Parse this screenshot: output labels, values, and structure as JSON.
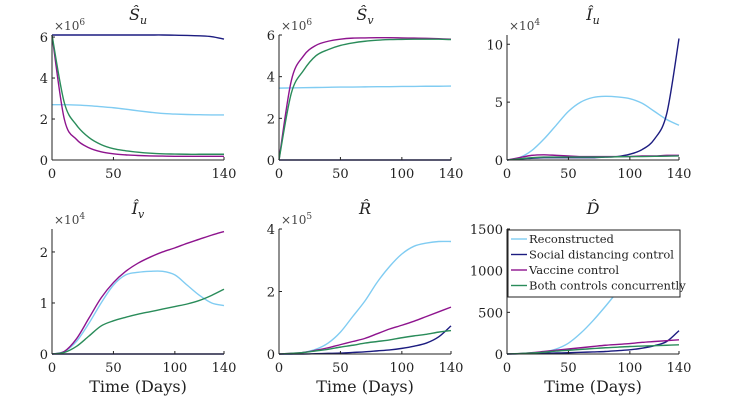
{
  "chart_data": [
    {
      "type": "line",
      "title": {
        "main": "Ŝ",
        "sub": "u"
      },
      "exponent": {
        "base": "×10",
        "power": "6"
      },
      "xlabel": "",
      "xlim": [
        0,
        140
      ],
      "ylim": [
        0,
        6.1
      ],
      "xticks": [
        0,
        50,
        140
      ],
      "yticks": [
        0,
        2,
        4,
        6
      ],
      "x": [
        0,
        10,
        20,
        30,
        40,
        50,
        60,
        70,
        80,
        90,
        100,
        110,
        120,
        130,
        140
      ],
      "series": [
        {
          "name": "Reconstructed",
          "values": [
            2.7,
            2.7,
            2.68,
            2.65,
            2.6,
            2.55,
            2.48,
            2.4,
            2.33,
            2.27,
            2.24,
            2.22,
            2.21,
            2.2,
            2.2
          ]
        },
        {
          "name": "Social distancing control",
          "values": [
            6.1,
            6.1,
            6.1,
            6.1,
            6.1,
            6.1,
            6.1,
            6.1,
            6.1,
            6.1,
            6.09,
            6.08,
            6.06,
            6.02,
            5.9
          ]
        },
        {
          "name": "Vaccine control",
          "values": [
            6.1,
            2.0,
            1.0,
            0.6,
            0.4,
            0.3,
            0.25,
            0.22,
            0.2,
            0.19,
            0.18,
            0.18,
            0.18,
            0.18,
            0.18
          ]
        },
        {
          "name": "Both controls concurrently",
          "values": [
            6.1,
            2.8,
            1.7,
            1.1,
            0.75,
            0.55,
            0.45,
            0.38,
            0.33,
            0.3,
            0.29,
            0.28,
            0.28,
            0.28,
            0.28
          ]
        }
      ]
    },
    {
      "type": "line",
      "title": {
        "main": "Ŝ",
        "sub": "v"
      },
      "exponent": {
        "base": "×10",
        "power": "6"
      },
      "xlabel": "",
      "xlim": [
        0,
        140
      ],
      "ylim": [
        0,
        6
      ],
      "xticks": [
        0,
        50,
        100,
        140
      ],
      "yticks": [
        0,
        2,
        4,
        6
      ],
      "x": [
        0,
        10,
        20,
        30,
        40,
        50,
        60,
        70,
        80,
        90,
        100,
        110,
        120,
        130,
        140
      ],
      "series": [
        {
          "name": "Reconstructed",
          "values": [
            3.45,
            3.46,
            3.47,
            3.48,
            3.49,
            3.5,
            3.5,
            3.51,
            3.52,
            3.52,
            3.53,
            3.53,
            3.54,
            3.54,
            3.55
          ]
        },
        {
          "name": "Social distancing control",
          "values": [
            0,
            0,
            0,
            0,
            0,
            0,
            0,
            0,
            0,
            0,
            0,
            0,
            0,
            0,
            0
          ]
        },
        {
          "name": "Vaccine control",
          "values": [
            0,
            3.8,
            5.0,
            5.5,
            5.7,
            5.8,
            5.85,
            5.86,
            5.87,
            5.87,
            5.86,
            5.85,
            5.84,
            5.82,
            5.8
          ]
        },
        {
          "name": "Both controls concurrently",
          "values": [
            0,
            3.2,
            4.3,
            5.0,
            5.3,
            5.5,
            5.62,
            5.7,
            5.75,
            5.78,
            5.79,
            5.8,
            5.8,
            5.8,
            5.78
          ]
        }
      ]
    },
    {
      "type": "line",
      "title": {
        "main": "Î",
        "sub": "u"
      },
      "exponent": {
        "base": "×10",
        "power": "4"
      },
      "xlabel": "",
      "xlim": [
        0,
        140
      ],
      "ylim": [
        0,
        10.8
      ],
      "xticks": [
        0,
        50,
        100,
        140
      ],
      "yticks": [
        0,
        5,
        10
      ],
      "x": [
        0,
        10,
        20,
        30,
        40,
        50,
        60,
        70,
        80,
        90,
        100,
        110,
        120,
        130,
        140
      ],
      "series": [
        {
          "name": "Reconstructed",
          "values": [
            0,
            0.2,
            0.8,
            1.8,
            3.0,
            4.2,
            5.0,
            5.4,
            5.5,
            5.45,
            5.3,
            4.9,
            4.2,
            3.5,
            3.0
          ]
        },
        {
          "name": "Social distancing control",
          "values": [
            0,
            0.1,
            0.15,
            0.2,
            0.2,
            0.2,
            0.2,
            0.2,
            0.25,
            0.3,
            0.5,
            0.9,
            1.8,
            4.0,
            10.5
          ]
        },
        {
          "name": "Vaccine control",
          "values": [
            0,
            0.2,
            0.4,
            0.45,
            0.4,
            0.35,
            0.3,
            0.3,
            0.3,
            0.3,
            0.3,
            0.35,
            0.35,
            0.4,
            0.4
          ]
        },
        {
          "name": "Both controls concurrently",
          "values": [
            0,
            0.1,
            0.2,
            0.25,
            0.25,
            0.25,
            0.25,
            0.25,
            0.25,
            0.28,
            0.3,
            0.3,
            0.32,
            0.33,
            0.35
          ]
        }
      ]
    },
    {
      "type": "line",
      "title": {
        "main": "Î",
        "sub": "v"
      },
      "exponent": {
        "base": "×10",
        "power": "4"
      },
      "xlabel": "Time (Days)",
      "xlim": [
        0,
        140
      ],
      "ylim": [
        0,
        2.45
      ],
      "xticks": [
        0,
        50,
        100,
        140
      ],
      "yticks": [
        0,
        1,
        2
      ],
      "x": [
        0,
        10,
        20,
        30,
        40,
        50,
        60,
        70,
        80,
        90,
        100,
        110,
        120,
        130,
        140
      ],
      "series": [
        {
          "name": "Reconstructed",
          "values": [
            0,
            0.05,
            0.25,
            0.6,
            1.0,
            1.35,
            1.55,
            1.6,
            1.62,
            1.62,
            1.55,
            1.35,
            1.15,
            1.0,
            0.95
          ]
        },
        {
          "name": "Social distancing control",
          "values": [
            0,
            0,
            0,
            0,
            0,
            0,
            0,
            0,
            0,
            0,
            0,
            0,
            0,
            0,
            0
          ]
        },
        {
          "name": "Vaccine control",
          "values": [
            0,
            0.05,
            0.3,
            0.7,
            1.1,
            1.4,
            1.62,
            1.78,
            1.9,
            2.0,
            2.08,
            2.17,
            2.25,
            2.33,
            2.4
          ]
        },
        {
          "name": "Both controls concurrently",
          "values": [
            0,
            0.03,
            0.15,
            0.35,
            0.55,
            0.65,
            0.72,
            0.78,
            0.83,
            0.88,
            0.93,
            0.98,
            1.05,
            1.15,
            1.27
          ]
        }
      ]
    },
    {
      "type": "line",
      "title": {
        "main": "R̂",
        "sub": ""
      },
      "exponent": {
        "base": "×10",
        "power": "5"
      },
      "xlabel": "Time (Days)",
      "xlim": [
        0,
        140
      ],
      "ylim": [
        0,
        4
      ],
      "xticks": [
        0,
        50,
        100,
        140
      ],
      "yticks": [
        0,
        2,
        4
      ],
      "x": [
        0,
        10,
        20,
        30,
        40,
        50,
        60,
        70,
        80,
        90,
        100,
        110,
        120,
        130,
        140
      ],
      "series": [
        {
          "name": "Reconstructed",
          "values": [
            0,
            0,
            0.05,
            0.15,
            0.35,
            0.7,
            1.2,
            1.7,
            2.3,
            2.8,
            3.2,
            3.45,
            3.55,
            3.6,
            3.6
          ]
        },
        {
          "name": "Social distancing control",
          "values": [
            0,
            0,
            0,
            0.01,
            0.02,
            0.03,
            0.05,
            0.07,
            0.1,
            0.13,
            0.18,
            0.25,
            0.35,
            0.55,
            0.9
          ]
        },
        {
          "name": "Vaccine control",
          "values": [
            0,
            0.02,
            0.05,
            0.12,
            0.2,
            0.3,
            0.4,
            0.5,
            0.65,
            0.8,
            0.92,
            1.05,
            1.2,
            1.35,
            1.5
          ]
        },
        {
          "name": "Both controls concurrently",
          "values": [
            0,
            0.02,
            0.05,
            0.1,
            0.15,
            0.22,
            0.28,
            0.35,
            0.4,
            0.45,
            0.52,
            0.58,
            0.63,
            0.7,
            0.75
          ]
        }
      ]
    },
    {
      "type": "line",
      "title": {
        "main": "D̂",
        "sub": ""
      },
      "exponent": null,
      "xlabel": "Time (Days)",
      "xlim": [
        0,
        140
      ],
      "ylim": [
        0,
        1500
      ],
      "xticks": [
        0,
        50,
        100,
        140
      ],
      "yticks": [
        0,
        500,
        1000,
        1500
      ],
      "x": [
        0,
        10,
        20,
        30,
        40,
        50,
        60,
        70,
        80,
        90,
        100,
        110,
        120,
        130,
        140
      ],
      "series": [
        {
          "name": "Reconstructed",
          "values": [
            0,
            2,
            10,
            25,
            60,
            130,
            250,
            400,
            570,
            750,
            920,
            1070,
            1190,
            1280,
            1330
          ]
        },
        {
          "name": "Social distancing control",
          "values": [
            0,
            2,
            5,
            8,
            12,
            15,
            20,
            25,
            30,
            40,
            50,
            70,
            100,
            150,
            280
          ]
        },
        {
          "name": "Vaccine control",
          "values": [
            0,
            5,
            15,
            30,
            45,
            60,
            75,
            90,
            105,
            115,
            125,
            140,
            150,
            160,
            170
          ]
        },
        {
          "name": "Both controls concurrently",
          "values": [
            0,
            5,
            12,
            22,
            35,
            45,
            55,
            65,
            75,
            82,
            90,
            95,
            100,
            105,
            110
          ]
        }
      ],
      "legend": {
        "placement": "top-left of last panel",
        "entries": [
          "Reconstructed",
          "Social distancing control",
          "Vaccine control",
          "Both controls concurrently"
        ]
      }
    }
  ],
  "colors": {
    "Reconstructed": "#80ccf2",
    "Social distancing control": "#1c1c80",
    "Vaccine control": "#8e148e",
    "Both controls concurrently": "#2a8c5a"
  }
}
